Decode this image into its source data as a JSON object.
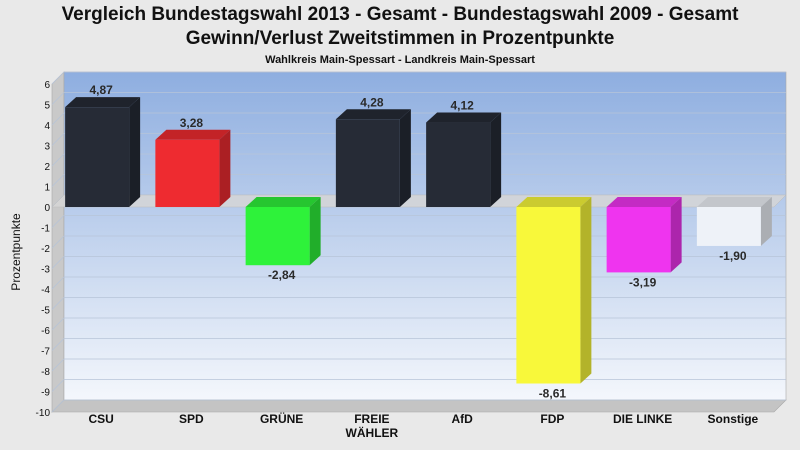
{
  "chart_data": {
    "type": "bar",
    "title_lines": [
      "Vergleich Bundestagswahl 2013 - Gesamt - Bundestagswahl 2009 - Gesamt",
      "Gewinn/Verlust Zweitstimmen in Prozentpunkte"
    ],
    "subtitle": "Wahlkreis Main-Spessart - Landkreis Main-Spessart",
    "ylabel": "Prozentpunkte",
    "xlabel": "",
    "ylim": [
      -10,
      6
    ],
    "yticks": [
      6,
      5,
      4,
      3,
      2,
      1,
      0,
      -1,
      -2,
      -3,
      -4,
      -5,
      -6,
      -7,
      -8,
      -9,
      -10
    ],
    "grid": true,
    "legend": "none",
    "categories": [
      [
        "CSU"
      ],
      [
        "SPD"
      ],
      [
        "GRÜNE"
      ],
      [
        "FREIE",
        "WÄHLER"
      ],
      [
        "AfD"
      ],
      [
        "FDP"
      ],
      [
        "DIE LINKE"
      ],
      [
        "Sonstige"
      ]
    ],
    "values": [
      4.87,
      3.28,
      -2.84,
      4.28,
      4.12,
      -8.61,
      -3.19,
      -1.9
    ],
    "value_labels": [
      "4,87",
      "3,28",
      "-2,84",
      "4,28",
      "4,12",
      "-8,61",
      "-3,19",
      "-1,90"
    ],
    "colors": [
      "#262b36",
      "#ee2b30",
      "#2ef23a",
      "#262b36",
      "#262b36",
      "#f8f83a",
      "#ef34ef",
      "#eef2f8"
    ]
  }
}
